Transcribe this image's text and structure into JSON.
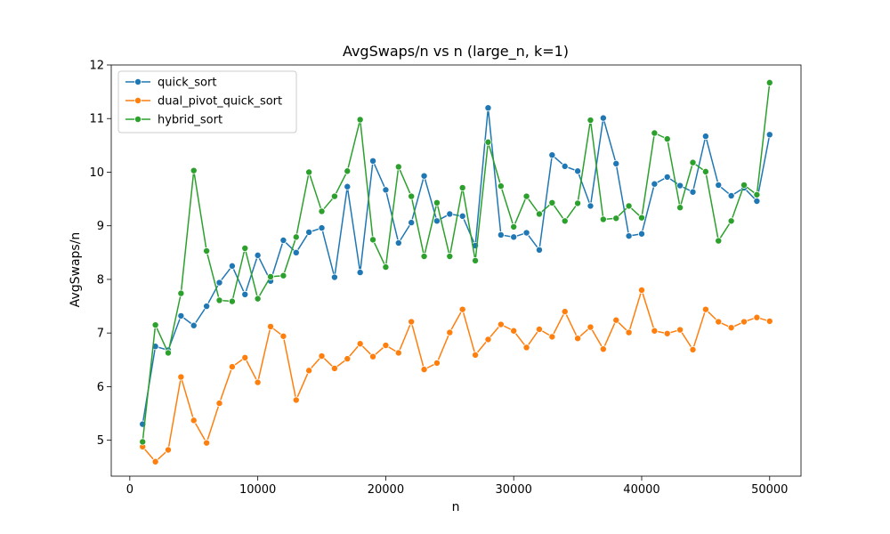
{
  "chart_data": {
    "type": "line",
    "title": "AvgSwaps/n vs n (large_n, k=1)",
    "xlabel": "n",
    "ylabel": "AvgSwaps/n",
    "xlim": [
      -1450,
      52450
    ],
    "ylim": [
      4.33,
      12.0
    ],
    "xticks": [
      0,
      10000,
      20000,
      30000,
      40000,
      50000
    ],
    "yticks": [
      5,
      6,
      7,
      8,
      9,
      10,
      11,
      12
    ],
    "legend_position": "upper-left",
    "grid": false,
    "x": [
      1000,
      2000,
      3000,
      4000,
      5000,
      6000,
      7000,
      8000,
      9000,
      10000,
      11000,
      12000,
      13000,
      14000,
      15000,
      16000,
      17000,
      18000,
      19000,
      20000,
      21000,
      22000,
      23000,
      24000,
      25000,
      26000,
      27000,
      28000,
      29000,
      30000,
      31000,
      32000,
      33000,
      34000,
      35000,
      36000,
      37000,
      38000,
      39000,
      40000,
      41000,
      42000,
      43000,
      44000,
      45000,
      46000,
      47000,
      48000,
      49000,
      50000
    ],
    "series": [
      {
        "name": "quick_sort",
        "color": "#1f77b4",
        "values": [
          5.3,
          6.75,
          6.68,
          7.32,
          7.14,
          7.5,
          7.94,
          8.25,
          7.72,
          8.45,
          7.97,
          8.73,
          8.5,
          8.88,
          8.96,
          8.04,
          9.73,
          8.13,
          10.21,
          9.67,
          8.68,
          9.06,
          9.93,
          9.09,
          9.22,
          9.18,
          8.63,
          11.2,
          8.83,
          8.79,
          8.87,
          8.55,
          10.32,
          10.11,
          10.02,
          9.37,
          11.01,
          10.16,
          8.81,
          8.85,
          9.78,
          9.91,
          9.75,
          9.63,
          10.67,
          9.76,
          9.56,
          9.71,
          9.46,
          10.7
        ]
      },
      {
        "name": "dual_pivot_quick_sort",
        "color": "#ff7f0e",
        "values": [
          4.88,
          4.6,
          4.82,
          6.18,
          5.37,
          4.95,
          5.69,
          6.37,
          6.54,
          6.08,
          7.12,
          6.94,
          5.75,
          6.3,
          6.57,
          6.34,
          6.52,
          6.8,
          6.56,
          6.77,
          6.63,
          7.21,
          6.32,
          6.44,
          7.01,
          7.44,
          6.59,
          6.88,
          7.16,
          7.04,
          6.73,
          7.07,
          6.93,
          7.4,
          6.9,
          7.11,
          6.7,
          7.24,
          7.01,
          7.8,
          7.04,
          6.99,
          7.06,
          6.69,
          7.44,
          7.21,
          7.1,
          7.21,
          7.29,
          7.22
        ]
      },
      {
        "name": "hybrid_sort",
        "color": "#2ca02c",
        "values": [
          4.97,
          7.15,
          6.63,
          7.74,
          10.03,
          8.53,
          7.61,
          7.59,
          8.58,
          7.64,
          8.05,
          8.07,
          8.79,
          10.0,
          9.27,
          9.55,
          10.02,
          10.98,
          8.74,
          8.23,
          10.1,
          9.55,
          8.43,
          9.43,
          8.43,
          9.71,
          8.35,
          10.56,
          9.74,
          8.98,
          9.55,
          9.22,
          9.43,
          9.09,
          9.42,
          10.97,
          9.12,
          9.14,
          9.37,
          9.15,
          10.73,
          10.62,
          9.34,
          10.18,
          10.01,
          8.72,
          9.09,
          9.76,
          9.58,
          11.67
        ]
      }
    ]
  }
}
